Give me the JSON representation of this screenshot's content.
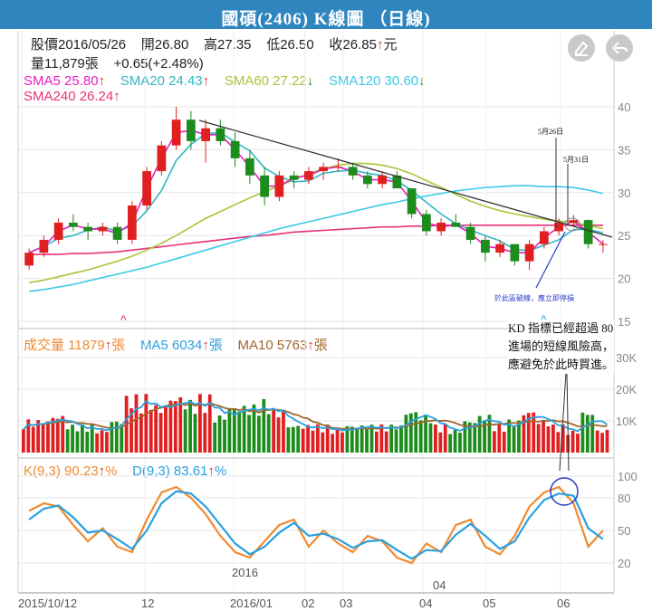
{
  "header": {
    "title": "國碩(2406) K線圖 （日線)"
  },
  "quote": {
    "date": "股價2016/05/26",
    "open": "開26.80",
    "high": "高27.35",
    "low": "低26.50",
    "close": "收26.85",
    "close_arrow": "↑",
    "close_unit": "元",
    "volume": "量11,879張",
    "change": "+0.65(+2.48%)"
  },
  "ma_legend": [
    {
      "label": "SMA5 25.80",
      "arrow": "↑",
      "color": "#e81fbf"
    },
    {
      "label": "SMA20 24.43",
      "arrow": "↑",
      "color": "#33b6c4"
    },
    {
      "label": "SMA60 27.22",
      "arrow": "↓",
      "color": "#a9c43b"
    },
    {
      "label": "SMA120 30.60",
      "arrow": "↓",
      "color": "#3cc9e8"
    },
    {
      "label": "SMA240 26.24",
      "arrow": "↑",
      "color": "#e6317b"
    }
  ],
  "vol_legend": [
    {
      "label": "成交量 11879",
      "arrow": "↑",
      "unit": "張",
      "color": "#f08a30"
    },
    {
      "label": "MA5 6034",
      "arrow": "↑",
      "unit": "張",
      "color": "#2aa0e0"
    },
    {
      "label": "MA10 5763",
      "arrow": "↑",
      "unit": "張",
      "color": "#a0662a"
    }
  ],
  "kd_legend": [
    {
      "label": "K(9,3) 90.23",
      "arrow": "↑",
      "unit": "%",
      "color": "#f08a30"
    },
    {
      "label": "D(9,3) 83.61",
      "arrow": "↑",
      "unit": "%",
      "color": "#2aa0e0"
    }
  ],
  "annotations": {
    "may26": "5月26日",
    "may31": "5月31日",
    "breakout": "於此區破線，應立即停損",
    "kd_note": [
      "KD 指標已經超過 80",
      "進場的短線風險高，",
      "應避免於此時買進。"
    ]
  },
  "colors": {
    "up": "#e02020",
    "down": "#1c8c1c",
    "header": "#2f86bf"
  },
  "icons": {
    "edit": "eraser-icon",
    "back": "back-arrow-icon"
  },
  "chart_data": [
    {
      "type": "candlestick",
      "ylim": [
        15,
        42
      ],
      "yticks": [
        15,
        20,
        25,
        30,
        35,
        40
      ],
      "xlabels": [
        "2015/10/12",
        "12",
        "2016/01",
        "02",
        "03",
        "04",
        "05",
        "06"
      ],
      "ohlc_weekly_approx": [
        [
          21.5,
          23.5,
          21.0,
          23.0
        ],
        [
          23.0,
          25.0,
          22.5,
          24.5
        ],
        [
          24.5,
          27.0,
          24.0,
          26.5
        ],
        [
          26.5,
          27.5,
          25.5,
          26.0
        ],
        [
          26.0,
          26.5,
          24.5,
          25.5
        ],
        [
          25.5,
          26.5,
          25.0,
          26.0
        ],
        [
          26.0,
          26.5,
          24.0,
          24.5
        ],
        [
          24.5,
          29.0,
          24.0,
          28.5
        ],
        [
          28.5,
          33.0,
          28.0,
          32.5
        ],
        [
          32.5,
          36.0,
          32.0,
          35.5
        ],
        [
          35.5,
          40.0,
          35.0,
          38.5
        ],
        [
          38.5,
          39.5,
          35.0,
          36.0
        ],
        [
          36.0,
          38.5,
          33.5,
          37.5
        ],
        [
          37.5,
          38.5,
          35.5,
          36.0
        ],
        [
          36.0,
          37.0,
          33.0,
          34.0
        ],
        [
          34.0,
          35.0,
          31.0,
          32.0
        ],
        [
          32.0,
          33.0,
          28.5,
          29.5
        ],
        [
          29.5,
          32.5,
          29.0,
          32.0
        ],
        [
          32.0,
          32.5,
          30.5,
          31.5
        ],
        [
          31.5,
          33.0,
          31.0,
          32.5
        ],
        [
          32.5,
          33.5,
          31.5,
          33.0
        ],
        [
          33.0,
          34.0,
          32.5,
          33.0
        ],
        [
          33.0,
          33.5,
          31.5,
          32.0
        ],
        [
          32.0,
          32.5,
          30.5,
          31.0
        ],
        [
          31.0,
          32.5,
          30.5,
          32.0
        ],
        [
          32.0,
          32.5,
          30.5,
          30.5
        ],
        [
          30.5,
          30.5,
          27.0,
          27.5
        ],
        [
          27.5,
          28.0,
          25.0,
          25.5
        ],
        [
          25.5,
          27.0,
          25.0,
          26.5
        ],
        [
          26.5,
          27.5,
          26.0,
          26.0
        ],
        [
          26.0,
          26.5,
          24.0,
          24.5
        ],
        [
          24.5,
          25.0,
          22.0,
          23.0
        ],
        [
          23.0,
          24.5,
          22.5,
          24.0
        ],
        [
          24.0,
          24.0,
          21.5,
          22.0
        ],
        [
          22.0,
          24.5,
          21.0,
          24.0
        ],
        [
          24.0,
          26.0,
          23.5,
          25.5
        ],
        [
          25.5,
          27.0,
          25.0,
          26.5
        ],
        [
          26.5,
          27.4,
          26.0,
          26.8
        ],
        [
          26.8,
          26.9,
          23.5,
          24.0
        ],
        [
          24.0,
          24.5,
          23.0,
          24.0
        ]
      ],
      "series": [
        {
          "name": "SMA240",
          "values": [
            22.8,
            22.8,
            22.8,
            22.9,
            22.9,
            23.0,
            23.1,
            23.3,
            23.5,
            23.7,
            23.9,
            24.1,
            24.3,
            24.5,
            24.7,
            24.9,
            25.0,
            25.2,
            25.4,
            25.5,
            25.6,
            25.7,
            25.8,
            25.9,
            26.0,
            26.0,
            26.1,
            26.1,
            26.2,
            26.2,
            26.2,
            26.2,
            26.2,
            26.2,
            26.2,
            26.2,
            26.2,
            26.2,
            26.2,
            26.2
          ]
        },
        {
          "name": "SMA120",
          "values": [
            18.5,
            18.7,
            19.0,
            19.3,
            19.7,
            20.1,
            20.5,
            20.9,
            21.3,
            21.8,
            22.3,
            22.8,
            23.3,
            23.8,
            24.3,
            24.8,
            25.3,
            25.8,
            26.2,
            26.6,
            27.0,
            27.4,
            27.8,
            28.2,
            28.6,
            28.9,
            29.3,
            29.6,
            29.9,
            30.2,
            30.4,
            30.6,
            30.7,
            30.8,
            30.8,
            30.7,
            30.7,
            30.6,
            30.3,
            29.9
          ]
        },
        {
          "name": "SMA60",
          "values": [
            19.5,
            19.8,
            20.2,
            20.6,
            21.0,
            21.5,
            22.0,
            22.6,
            23.3,
            24.1,
            25.0,
            26.0,
            27.0,
            27.8,
            28.6,
            29.4,
            30.1,
            30.8,
            31.5,
            32.2,
            32.8,
            33.2,
            33.4,
            33.4,
            33.2,
            32.8,
            32.2,
            31.4,
            30.6,
            29.8,
            29.0,
            28.4,
            27.9,
            27.5,
            27.2,
            26.9,
            26.7,
            26.5,
            26.2,
            25.8
          ]
        }
      ]
    },
    {
      "type": "bar",
      "title": "成交量",
      "yticks": [
        "10K",
        "20K",
        "30K"
      ],
      "ylim": [
        0,
        40000
      ]
    },
    {
      "type": "line",
      "title": "KD",
      "ylim": [
        0,
        100
      ],
      "yticks": [
        20,
        50,
        80,
        100
      ],
      "series": [
        {
          "name": "K(9,3)",
          "values": [
            68,
            75,
            72,
            55,
            40,
            52,
            35,
            30,
            60,
            85,
            90,
            80,
            65,
            45,
            30,
            25,
            40,
            55,
            60,
            35,
            50,
            38,
            30,
            45,
            40,
            25,
            20,
            38,
            30,
            55,
            60,
            35,
            28,
            45,
            72,
            85,
            90,
            75,
            35,
            50
          ]
        },
        {
          "name": "D(9,3)",
          "values": [
            60,
            70,
            73,
            62,
            48,
            50,
            42,
            33,
            50,
            75,
            86,
            84,
            72,
            55,
            38,
            28,
            35,
            48,
            57,
            45,
            47,
            42,
            34,
            40,
            41,
            32,
            24,
            32,
            31,
            46,
            56,
            45,
            33,
            40,
            62,
            78,
            84,
            82,
            52,
            42
          ]
        }
      ]
    }
  ]
}
